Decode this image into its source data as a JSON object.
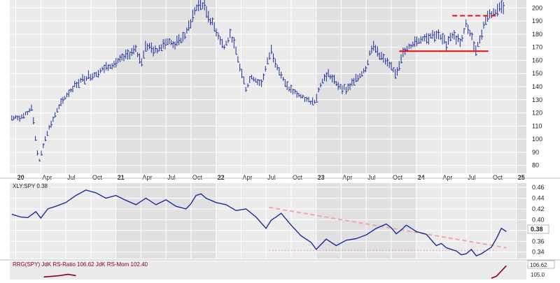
{
  "colors": {
    "plot_bg": "#ebebeb",
    "alt_band": "#e0e0e0",
    "grid": "#ffffff",
    "price_bars": "#1c2ba0",
    "ratio_line": "#1c2ba0",
    "resistance": "#e01010",
    "trend_line": "#f4a6a6",
    "rrg_line": "#8b0020",
    "axis_text": "#222222"
  },
  "chart_data": [
    {
      "type": "bar",
      "style": "ohlc",
      "x_axis_labels": [
        "20",
        "Apr",
        "Jul",
        "Oct",
        "21",
        "Apr",
        "Jul",
        "Oct",
        "22",
        "Apr",
        "Jul",
        "Oct",
        "23",
        "Apr",
        "Jul",
        "Oct",
        "24",
        "Apr",
        "Jul",
        "Oct",
        "25"
      ],
      "y_ticks": [
        80,
        90,
        100,
        110,
        120,
        130,
        140,
        150,
        160,
        170,
        180,
        190,
        200
      ],
      "ylim": [
        74,
        206
      ],
      "xlim": [
        2019.94,
        2025.1
      ],
      "grid": true,
      "x": [
        2019.96,
        2020.06,
        2020.12,
        2020.16,
        2020.2,
        2020.23,
        2020.3,
        2020.4,
        2020.5,
        2020.6,
        2020.7,
        2020.8,
        2020.9,
        2021.0,
        2021.1,
        2021.2,
        2021.25,
        2021.3,
        2021.4,
        2021.5,
        2021.6,
        2021.7,
        2021.8,
        2021.85,
        2021.88,
        2021.95,
        2022.0,
        2022.08,
        2022.15,
        2022.22,
        2022.3,
        2022.35,
        2022.45,
        2022.55,
        2022.6,
        2022.7,
        2022.8,
        2022.9,
        2022.98,
        2023.05,
        2023.12,
        2023.2,
        2023.3,
        2023.4,
        2023.5,
        2023.55,
        2023.6,
        2023.7,
        2023.8,
        2023.85,
        2023.9,
        2024.0,
        2024.1,
        2024.2,
        2024.3,
        2024.35,
        2024.45,
        2024.5,
        2024.55,
        2024.6,
        2024.7,
        2024.8,
        2024.87
      ],
      "values": [
        116,
        117,
        120,
        125,
        98,
        82,
        103,
        120,
        133,
        142,
        147,
        150,
        155,
        158,
        163,
        168,
        158,
        172,
        167,
        175,
        172,
        180,
        200,
        203,
        201,
        190,
        183,
        170,
        180,
        160,
        138,
        148,
        142,
        168,
        158,
        140,
        135,
        130,
        128,
        143,
        150,
        142,
        138,
        145,
        155,
        170,
        168,
        158,
        150,
        163,
        168,
        175,
        178,
        180,
        173,
        180,
        174,
        188,
        178,
        168,
        193,
        198,
        202
      ],
      "annotations": {
        "resistance": {
          "y": 194,
          "x_from": 2024.36,
          "x_to": 2024.8,
          "style": "dashed"
        },
        "support": {
          "y": 167,
          "x_from": 2023.83,
          "x_to": 2024.72,
          "style": "solid"
        }
      }
    },
    {
      "type": "line",
      "legend_label": "XLY:SPY 0.38",
      "last_value_label": "0.38",
      "y_ticks": [
        0.34,
        0.36,
        0.38,
        0.4,
        0.42,
        0.44,
        0.46
      ],
      "ylim": [
        0.328,
        0.468
      ],
      "xlim": [
        2019.94,
        2025.1
      ],
      "grid": true,
      "x": [
        2019.96,
        2020.05,
        2020.12,
        2020.2,
        2020.25,
        2020.32,
        2020.4,
        2020.5,
        2020.6,
        2020.7,
        2020.8,
        2020.9,
        2021.0,
        2021.1,
        2021.2,
        2021.3,
        2021.4,
        2021.5,
        2021.6,
        2021.7,
        2021.75,
        2021.8,
        2021.85,
        2021.9,
        2022.0,
        2022.1,
        2022.2,
        2022.3,
        2022.4,
        2022.5,
        2022.55,
        2022.6,
        2022.65,
        2022.75,
        2022.85,
        2022.95,
        2023.0,
        2023.1,
        2023.2,
        2023.3,
        2023.4,
        2023.5,
        2023.6,
        2023.7,
        2023.75,
        2023.8,
        2023.85,
        2023.9,
        2024.0,
        2024.1,
        2024.2,
        2024.25,
        2024.3,
        2024.4,
        2024.45,
        2024.5,
        2024.55,
        2024.6,
        2024.65,
        2024.7,
        2024.75,
        2024.8,
        2024.85,
        2024.9
      ],
      "values": [
        0.41,
        0.405,
        0.404,
        0.415,
        0.403,
        0.42,
        0.425,
        0.432,
        0.445,
        0.455,
        0.45,
        0.44,
        0.445,
        0.436,
        0.428,
        0.44,
        0.428,
        0.437,
        0.425,
        0.42,
        0.43,
        0.445,
        0.448,
        0.44,
        0.432,
        0.428,
        0.417,
        0.42,
        0.405,
        0.384,
        0.399,
        0.405,
        0.412,
        0.39,
        0.37,
        0.358,
        0.345,
        0.364,
        0.352,
        0.362,
        0.365,
        0.372,
        0.384,
        0.392,
        0.385,
        0.374,
        0.381,
        0.39,
        0.378,
        0.373,
        0.352,
        0.356,
        0.348,
        0.342,
        0.335,
        0.337,
        0.345,
        0.333,
        0.337,
        0.343,
        0.349,
        0.365,
        0.384,
        0.378
      ],
      "annotations": {
        "trend_line": {
          "from": [
            2022.53,
            0.423
          ],
          "to": [
            2024.9,
            0.348
          ],
          "style": "dashed"
        },
        "support_line": {
          "y": 0.343,
          "x_from": 2022.53,
          "x_to": 2024.8,
          "style": "dotted"
        }
      }
    },
    {
      "type": "line",
      "legend_label": "RRG(SPY) JdK RS-Ratio 106.62 JdK RS-Mom 102.40",
      "last_value_label": "106.62",
      "y_ticks": [
        105.0
      ],
      "ylim": [
        104.5,
        107.3
      ],
      "xlim": [
        2019.94,
        2025.1
      ],
      "x": [
        2020.28,
        2020.36,
        2020.44,
        2020.52,
        2020.6,
        2024.75,
        2024.8,
        2024.85,
        2024.9
      ],
      "values": [
        104.9,
        105.0,
        105.1,
        105.3,
        105.1,
        104.7,
        105.0,
        105.8,
        106.62
      ]
    }
  ]
}
